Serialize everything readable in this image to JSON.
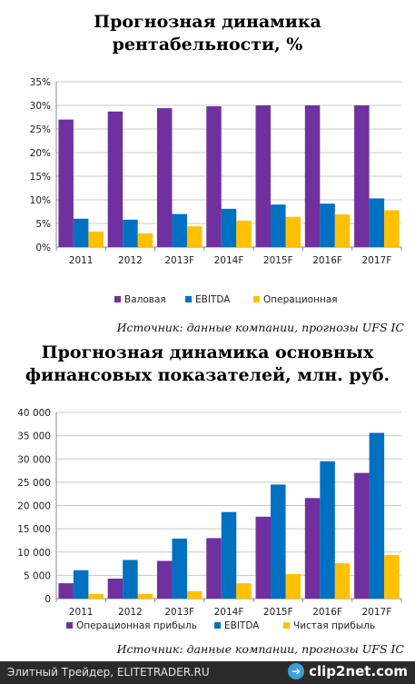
{
  "colors": {
    "purple": "#7030a0",
    "blue": "#0070c0",
    "yellow": "#ffc000",
    "grid": "#c8c8c8"
  },
  "chart1": {
    "title": "Прогнозная динамика рентабельности, %",
    "title_lines": [
      "Прогнозная динамика",
      "рентабельности, %"
    ],
    "source": "Источник: данные компании, прогнозы UFS IC",
    "chart_data": {
      "type": "bar",
      "title": "Прогнозная динамика рентабельности, %",
      "categories": [
        "2011",
        "2012",
        "2013F",
        "2014F",
        "2015F",
        "2016F",
        "2017F"
      ],
      "series": [
        {
          "name": "Валовая",
          "values": [
            27,
            28.7,
            29.4,
            29.8,
            30,
            30,
            30
          ]
        },
        {
          "name": "EBITDA",
          "values": [
            6,
            5.8,
            7,
            8.1,
            9,
            9.2,
            10.3
          ]
        },
        {
          "name": "Операционная",
          "values": [
            3.3,
            2.9,
            4.4,
            5.6,
            6.4,
            6.9,
            7.8
          ]
        }
      ],
      "ylim": [
        0,
        35
      ],
      "yticks": [
        0,
        5,
        10,
        15,
        20,
        25,
        30,
        35
      ],
      "ytick_labels": [
        "0%",
        "5%",
        "10%",
        "15%",
        "20%",
        "25%",
        "30%",
        "35%"
      ],
      "grid": true,
      "legend_position": "bottom"
    }
  },
  "chart2": {
    "title": "Прогнозная динамика основных финансовых показателей, млн. руб.",
    "title_lines": [
      "Прогнозная динамика основных",
      "финансовых показателей, млн. руб."
    ],
    "source": "Источник: данные компании, прогнозы UFS IC",
    "chart_data": {
      "type": "bar",
      "title": "Прогнозная динамика основных финансовых показателей, млн. руб.",
      "categories": [
        "2011",
        "2012",
        "2013F",
        "2014F",
        "2015F",
        "2016F",
        "2017F"
      ],
      "series": [
        {
          "name": "Операционная прибыль",
          "values": [
            3300,
            4300,
            8100,
            13000,
            17600,
            21600,
            27000
          ]
        },
        {
          "name": "EBITDA",
          "values": [
            6100,
            8300,
            12900,
            18600,
            24500,
            29500,
            35600
          ]
        },
        {
          "name": "Чистая прибыль",
          "values": [
            1000,
            1000,
            1600,
            3300,
            5300,
            7600,
            9400
          ]
        }
      ],
      "ylim": [
        0,
        40000
      ],
      "yticks": [
        0,
        5000,
        10000,
        15000,
        20000,
        25000,
        30000,
        35000,
        40000
      ],
      "ytick_labels": [
        "0",
        "5 000",
        "10 000",
        "15 000",
        "20 000",
        "25 000",
        "30 000",
        "35 000",
        "40 000"
      ],
      "grid": true,
      "legend_position": "bottom"
    }
  },
  "footer": {
    "left_text": "Элитный Трейдер, ELITETRADER.RU",
    "logo_text": "clip2net.com",
    "logo_icon": "arrow-icon"
  }
}
